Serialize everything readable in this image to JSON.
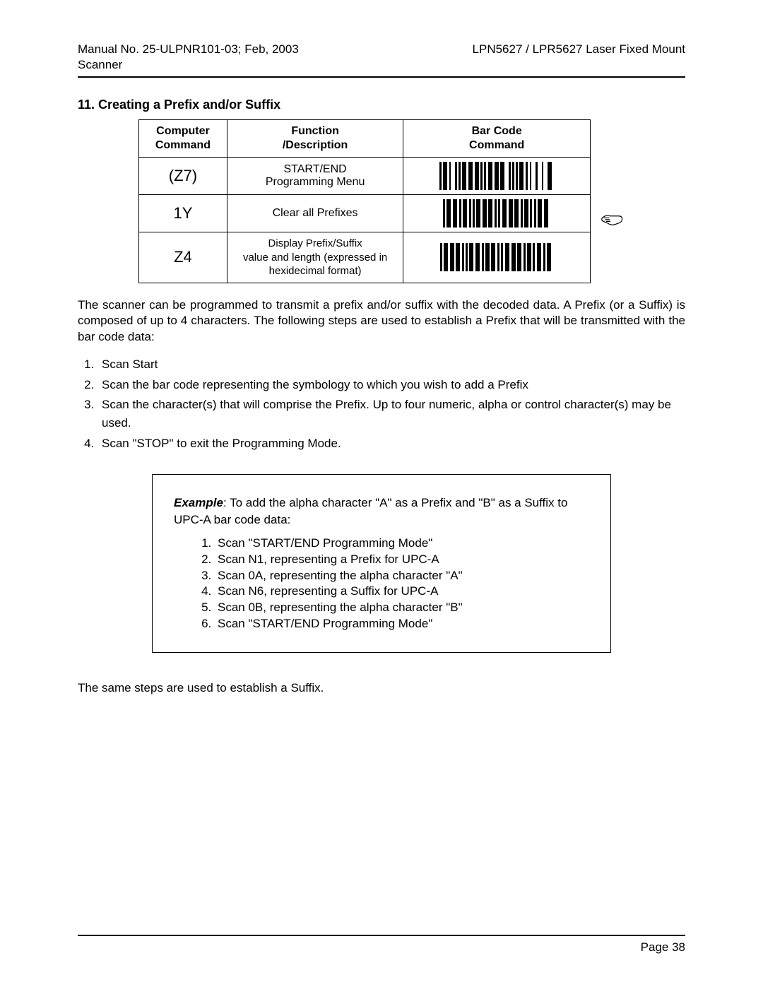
{
  "header": {
    "left": "Manual No. 25-ULPNR101-03; Feb, 2003",
    "right": "LPN5627 / LPR5627 Laser Fixed Mount",
    "sub": "Scanner"
  },
  "section": {
    "title": "11. Creating a Prefix and/or Suffix"
  },
  "table": {
    "headers": {
      "col1a": "Computer",
      "col1b": "Command",
      "col2a": "Function",
      "col2b": "/Description",
      "col3a": "Bar Code",
      "col3b": "Command"
    },
    "rows": [
      {
        "cmd": "(Z7)",
        "desc1": "START/END",
        "desc2": "Programming Menu",
        "barcode": [
          3,
          2,
          6,
          3,
          2,
          6,
          3,
          2,
          3,
          2,
          6,
          3,
          6,
          3,
          6,
          2,
          3,
          2,
          3,
          3,
          6,
          3,
          6,
          2,
          6,
          6,
          3,
          2,
          3,
          2,
          3,
          2,
          6,
          3,
          3,
          3,
          2,
          6,
          3,
          6,
          2,
          6,
          6,
          3
        ]
      },
      {
        "cmd": "1Y",
        "desc1": "Clear all Prefixes",
        "desc2": "",
        "barcode": [
          3,
          2,
          6,
          3,
          6,
          3,
          3,
          2,
          6,
          3,
          3,
          2,
          3,
          2,
          6,
          3,
          6,
          2,
          6,
          3,
          3,
          2,
          3,
          3,
          6,
          3,
          6,
          2,
          6,
          3,
          3,
          2,
          6,
          2,
          3,
          3,
          3,
          2,
          6,
          3,
          6,
          3
        ]
      },
      {
        "cmd": "Z4",
        "desc1": "Display Prefix/Suffix",
        "desc2": "value and length (expressed in",
        "desc3": "hexidecimal format)",
        "barcode": [
          3,
          2,
          6,
          3,
          6,
          2,
          6,
          3,
          3,
          2,
          3,
          2,
          6,
          3,
          6,
          3,
          3,
          2,
          6,
          2,
          6,
          3,
          3,
          2,
          3,
          3,
          6,
          3,
          6,
          2,
          6,
          3,
          3,
          2,
          6,
          2,
          3,
          3,
          6,
          3,
          3,
          2,
          6,
          3
        ]
      }
    ]
  },
  "paragraph": "The scanner can be programmed to transmit a prefix and/or suffix with the decoded data. A Prefix (or a Suffix) is composed of up to 4 characters.  The following steps are used to establish a Prefix that will be transmitted with the bar code data:",
  "steps": [
    "Scan Start",
    "Scan the bar code representing the symbology to which you wish to add a Prefix",
    "Scan the character(s) that will comprise the Prefix.  Up to four numeric, alpha or control character(s) may be used.",
    "Scan \"STOP\" to exit the Programming Mode."
  ],
  "example": {
    "label": "Example",
    "lead": ":  To add the alpha character \"A\" as a Prefix and \"B\" as a Suffix to UPC-A bar code data:",
    "items": [
      "Scan \"START/END Programming Mode\"",
      "Scan N1, representing a Prefix for UPC-A",
      "Scan 0A, representing the alpha character \"A\"",
      "Scan N6, representing a Suffix for UPC-A",
      "Scan 0B, representing the alpha character \"B\"",
      "Scan \"START/END Programming Mode\""
    ]
  },
  "closing": "The same steps are used to establish a Suffix.",
  "footer": {
    "page": "Page  38"
  },
  "colors": {
    "text": "#000000",
    "bg": "#ffffff",
    "rule": "#000000"
  }
}
